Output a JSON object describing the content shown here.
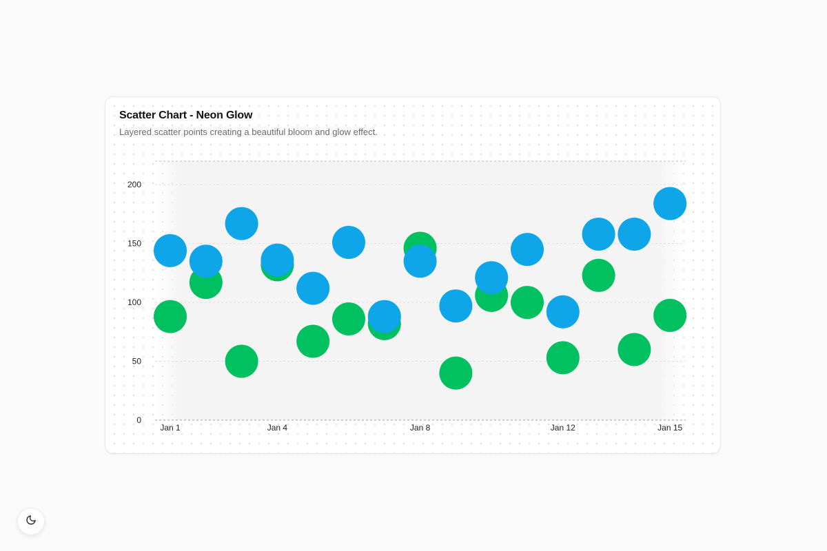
{
  "card": {
    "title": "Scatter Chart - Neon Glow",
    "subtitle": "Layered scatter points creating a beautiful bloom and glow effect."
  },
  "theme_toggle": {
    "icon": "moon-icon"
  },
  "colors": {
    "series_a": "#0ea5e9",
    "series_b": "#00c060",
    "plot_background": "#f4f4f4",
    "grid": "#cfcfcf"
  },
  "chart_data": {
    "type": "scatter",
    "title": "Scatter Chart - Neon Glow",
    "subtitle": "Layered scatter points creating a beautiful bloom and glow effect.",
    "xlabel": "",
    "ylabel": "",
    "x": [
      "Jan 1",
      "Jan 2",
      "Jan 3",
      "Jan 4",
      "Jan 5",
      "Jan 6",
      "Jan 7",
      "Jan 8",
      "Jan 9",
      "Jan 10",
      "Jan 11",
      "Jan 12",
      "Jan 13",
      "Jan 14",
      "Jan 15"
    ],
    "x_tick_labels": [
      "Jan 1",
      "Jan 4",
      "Jan 8",
      "Jan 12",
      "Jan 15"
    ],
    "ylim": [
      0,
      220
    ],
    "y_ticks": [
      0,
      50,
      100,
      150,
      200
    ],
    "grid": true,
    "grid_style": "dashed horizontal",
    "legend": "none",
    "series": [
      {
        "color": "#0ea5e9",
        "values": [
          144,
          135,
          167,
          136,
          112,
          151,
          88,
          135,
          97,
          121,
          145,
          92,
          158,
          158,
          184
        ]
      },
      {
        "color": "#00c060",
        "values": [
          88,
          117,
          50,
          132,
          67,
          86,
          82,
          146,
          40,
          106,
          100,
          53,
          123,
          60,
          89
        ]
      }
    ]
  }
}
